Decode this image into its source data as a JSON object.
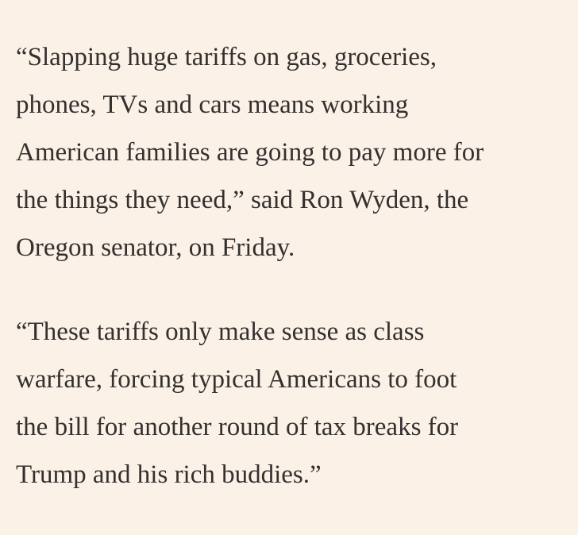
{
  "paragraphs": [
    {
      "lines": [
        "“Slapping huge tariffs on gas, groceries,",
        "phones, TVs and cars means working",
        "American families are going to pay more for",
        "the things they need,” said Ron Wyden, the",
        "Oregon senator, on Friday."
      ]
    },
    {
      "lines": [
        "“These tariffs only make sense as class",
        "warfare, forcing typical Americans to foot",
        "the bill for another round of tax breaks for",
        "Trump and his rich buddies.”"
      ]
    }
  ]
}
